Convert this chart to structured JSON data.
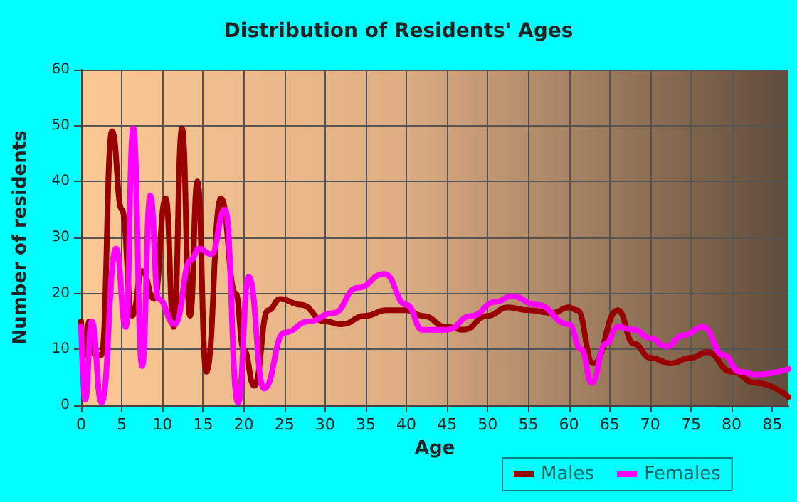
{
  "chart_data": {
    "type": "line",
    "title": "Distribution of Residents' Ages",
    "xlabel": "Age",
    "ylabel": "Number of residents",
    "xlim": [
      0,
      87
    ],
    "xticks": [
      0,
      5,
      10,
      15,
      20,
      25,
      30,
      35,
      40,
      45,
      50,
      55,
      60,
      65,
      70,
      75,
      80,
      85
    ],
    "ylim": [
      0,
      60
    ],
    "yticks": [
      0,
      10,
      20,
      30,
      40,
      50,
      60
    ],
    "grid": true,
    "legend": "bottom",
    "marker": "none",
    "line_style": "solid",
    "series": [
      {
        "name": "Males",
        "color": "#990000",
        "x": [
          0,
          0.5,
          1,
          1.7,
          2.5,
          3.8,
          5,
          6.3,
          7.5,
          9,
          10.4,
          11.4,
          12.4,
          13.4,
          14.3,
          15.4,
          17.2,
          19,
          20,
          21.3,
          23,
          24.5,
          27,
          30,
          32,
          35,
          37.5,
          40,
          42,
          45,
          47,
          50,
          52.5,
          55,
          58,
          60,
          61,
          63,
          66,
          68,
          70,
          72.5,
          75,
          77,
          80,
          83,
          87
        ],
        "values": [
          15,
          9,
          15,
          9,
          9,
          49,
          35,
          16,
          24,
          19,
          37,
          14,
          49.5,
          16,
          40,
          6,
          37,
          20,
          10,
          3.5,
          17,
          19,
          18,
          15,
          14.5,
          16,
          17,
          17,
          16,
          14,
          13.5,
          16,
          17.5,
          17,
          16.5,
          17.5,
          17,
          7.5,
          17,
          11,
          8.5,
          7.5,
          8.5,
          9.5,
          6,
          4,
          1.5
        ]
      },
      {
        "name": "Females",
        "color": "#ff00ff",
        "x": [
          0,
          0.5,
          1.3,
          2.5,
          4.3,
          5.5,
          6.4,
          7.5,
          8.5,
          9.5,
          11.5,
          13.5,
          14.5,
          16,
          17.7,
          19.3,
          20.6,
          22.5,
          25,
          28,
          31,
          34,
          37.3,
          40,
          42,
          45,
          48,
          51,
          53,
          56,
          60,
          61.5,
          62.8,
          64.5,
          66,
          68,
          70,
          72,
          74,
          76.5,
          79,
          81,
          83,
          87
        ],
        "values": [
          14,
          1,
          15,
          0.5,
          28,
          14,
          49.5,
          7,
          37.5,
          19,
          14.5,
          26,
          28,
          27,
          35,
          0.5,
          23,
          3,
          13,
          15,
          16.5,
          21,
          23.5,
          18,
          13.5,
          13.5,
          16,
          18.5,
          19.5,
          18,
          14.5,
          10,
          4,
          11,
          14,
          13.5,
          12,
          10.5,
          12.5,
          14,
          9,
          6,
          5.5,
          6.5
        ]
      }
    ]
  }
}
